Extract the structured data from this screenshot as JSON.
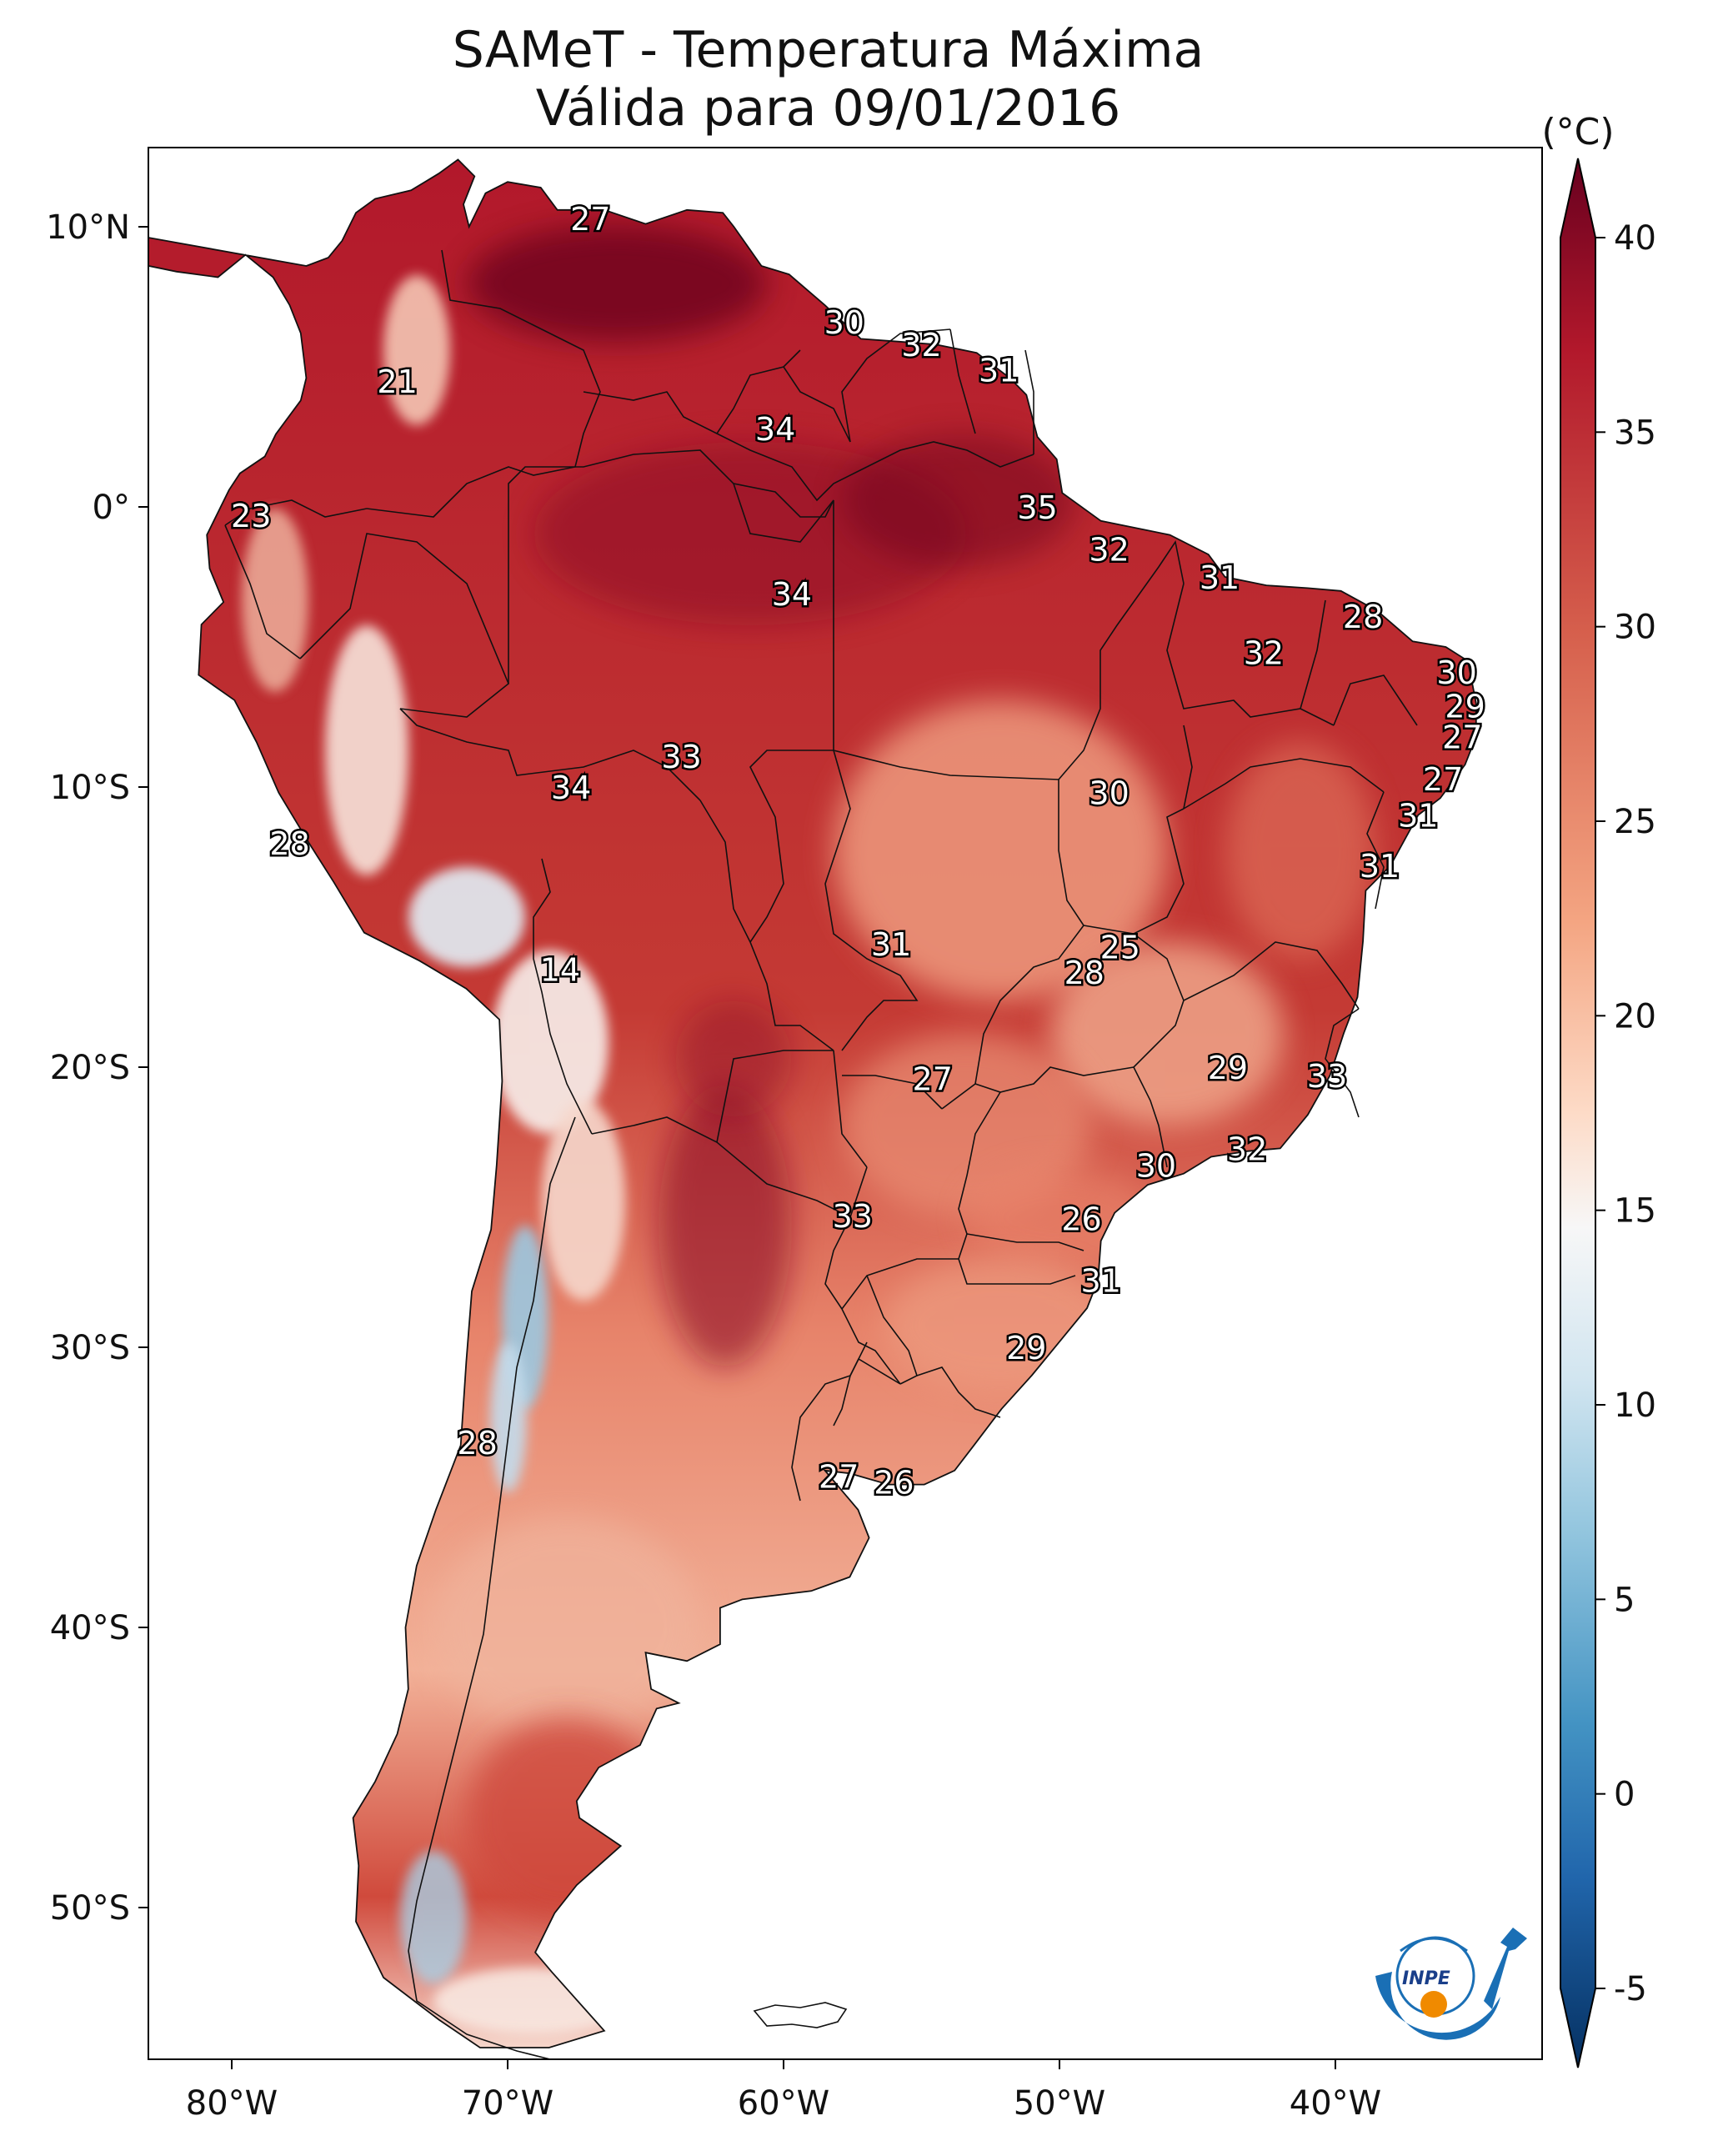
{
  "title": "SAMeT - Temperatura Máxima",
  "subtitle": "Válida para 09/01/2016",
  "colorbar": {
    "unit": "(°C)",
    "ticks": [
      "40",
      "35",
      "30",
      "25",
      "20",
      "15",
      "10",
      "5",
      "0",
      "-5"
    ],
    "values": [
      40,
      35,
      30,
      25,
      20,
      15,
      10,
      5,
      0,
      -5
    ],
    "colors": [
      "#67001f",
      "#b2182b",
      "#d6604d",
      "#f4a582",
      "#fddbc7",
      "#f7f7f7",
      "#d1e5f0",
      "#92c5de",
      "#4393c3",
      "#2166ac",
      "#053061"
    ]
  },
  "axes": {
    "lon_labels": [
      "80°W",
      "70°W",
      "60°W",
      "50°W",
      "40°W"
    ],
    "lat_labels": [
      "10°N",
      "0°",
      "10°S",
      "20°S",
      "30°S",
      "40°S",
      "50°S"
    ]
  },
  "stations": [
    {
      "label": "27",
      "lon": -67.0,
      "lat": 10.3
    },
    {
      "label": "21",
      "lon": -74.0,
      "lat": 4.5
    },
    {
      "label": "30",
      "lon": -57.8,
      "lat": 6.6
    },
    {
      "label": "32",
      "lon": -55.0,
      "lat": 5.8
    },
    {
      "label": "31",
      "lon": -52.2,
      "lat": 4.9
    },
    {
      "label": "34",
      "lon": -60.3,
      "lat": 2.8
    },
    {
      "label": "23",
      "lon": -79.3,
      "lat": -0.3
    },
    {
      "label": "35",
      "lon": -50.8,
      "lat": 0.0
    },
    {
      "label": "32",
      "lon": -48.2,
      "lat": -1.5
    },
    {
      "label": "31",
      "lon": -44.2,
      "lat": -2.5
    },
    {
      "label": "34",
      "lon": -59.7,
      "lat": -3.1
    },
    {
      "label": "28",
      "lon": -39.0,
      "lat": -3.9
    },
    {
      "label": "32",
      "lon": -42.6,
      "lat": -5.2
    },
    {
      "label": "30",
      "lon": -35.6,
      "lat": -5.9
    },
    {
      "label": "29",
      "lon": -35.3,
      "lat": -7.1
    },
    {
      "label": "27",
      "lon": -35.4,
      "lat": -8.2
    },
    {
      "label": "33",
      "lon": -63.7,
      "lat": -8.9
    },
    {
      "label": "34",
      "lon": -67.7,
      "lat": -10.0
    },
    {
      "label": "30",
      "lon": -48.2,
      "lat": -10.2
    },
    {
      "label": "27",
      "lon": -36.1,
      "lat": -9.7
    },
    {
      "label": "31",
      "lon": -37.0,
      "lat": -11.0
    },
    {
      "label": "28",
      "lon": -77.9,
      "lat": -12.0
    },
    {
      "label": "31",
      "lon": -38.4,
      "lat": -12.8
    },
    {
      "label": "31",
      "lon": -56.1,
      "lat": -15.6
    },
    {
      "label": "25",
      "lon": -47.8,
      "lat": -15.7
    },
    {
      "label": "28",
      "lon": -49.1,
      "lat": -16.6
    },
    {
      "label": "14",
      "lon": -68.1,
      "lat": -16.5
    },
    {
      "label": "27",
      "lon": -54.6,
      "lat": -20.4
    },
    {
      "label": "29",
      "lon": -43.9,
      "lat": -20.0
    },
    {
      "label": "33",
      "lon": -40.3,
      "lat": -20.3
    },
    {
      "label": "32",
      "lon": -43.2,
      "lat": -22.9
    },
    {
      "label": "30",
      "lon": -46.5,
      "lat": -23.5
    },
    {
      "label": "33",
      "lon": -57.5,
      "lat": -25.3
    },
    {
      "label": "26",
      "lon": -49.2,
      "lat": -25.4
    },
    {
      "label": "31",
      "lon": -48.5,
      "lat": -27.6
    },
    {
      "label": "29",
      "lon": -51.2,
      "lat": -30.0
    },
    {
      "label": "28",
      "lon": -71.1,
      "lat": -33.4
    },
    {
      "label": "27",
      "lon": -58.0,
      "lat": -34.6
    },
    {
      "label": "26",
      "lon": -56.0,
      "lat": -34.8
    }
  ],
  "logo": {
    "text": "INPE"
  }
}
